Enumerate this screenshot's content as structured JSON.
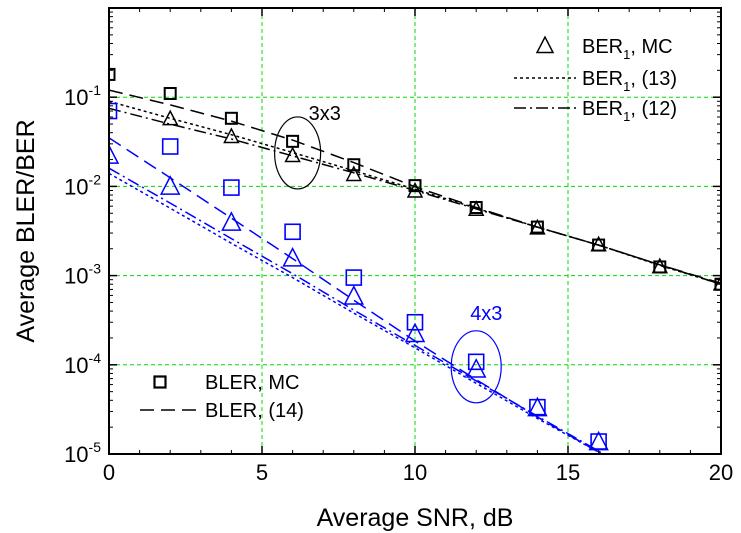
{
  "chart_data": {
    "type": "line",
    "xlabel": "Average SNR, dB",
    "ylabel": "Average BLER/BER",
    "xlim": [
      0,
      20
    ],
    "ylim": [
      1e-05,
      1
    ],
    "yscale": "log",
    "grid": true,
    "xticks": [
      {
        "value": 0,
        "label": "0"
      },
      {
        "value": 5,
        "label": "5"
      },
      {
        "value": 10,
        "label": "10"
      },
      {
        "value": 15,
        "label": "15"
      },
      {
        "value": 20,
        "label": "20"
      }
    ],
    "yticks": [
      {
        "value": 1e-05,
        "base": "10",
        "exp": "-5"
      },
      {
        "value": 0.0001,
        "base": "10",
        "exp": "-4"
      },
      {
        "value": 0.001,
        "base": "10",
        "exp": "-3"
      },
      {
        "value": 0.01,
        "base": "10",
        "exp": "-2"
      },
      {
        "value": 0.1,
        "base": "10",
        "exp": "-1"
      }
    ],
    "legend_top_right": [
      {
        "marker": "triangle",
        "text": "BER",
        "sub": "1",
        "rest": ", MC"
      },
      {
        "line": "dotted",
        "text": "BER",
        "sub": "1",
        "rest": ", (13)"
      },
      {
        "line": "dashdot",
        "text": "BER",
        "sub": "1",
        "rest": ", (12)"
      }
    ],
    "legend_bottom_left": [
      {
        "marker": "square",
        "text": "BLER, MC"
      },
      {
        "line": "dashed",
        "text": "BLER, (14)"
      }
    ],
    "annotations": [
      {
        "text": "3x3",
        "color": "#000000",
        "x": 6,
        "y": 0.027
      },
      {
        "text": "4x3",
        "color": "#0000ff",
        "x": 12,
        "y": 0.0001
      }
    ],
    "colors": {
      "config_3x3": "#000000",
      "config_4x3": "#0000ff",
      "grid": "#00dd00"
    },
    "series": [
      {
        "config": "3x3",
        "kind": "BLER",
        "style": "square",
        "x": [
          0,
          2,
          4,
          6,
          8,
          10,
          12,
          14,
          16,
          18,
          20
        ],
        "y": [
          0.18,
          0.11,
          0.058,
          0.032,
          0.0175,
          0.0102,
          0.0058,
          0.0035,
          0.0022,
          0.00125,
          0.0008
        ]
      },
      {
        "config": "3x3",
        "kind": "BLER",
        "style": "dashed",
        "x": [
          0,
          2,
          4,
          6,
          8,
          10,
          12,
          14,
          16,
          18,
          20
        ],
        "y": [
          0.12,
          0.082,
          0.054,
          0.033,
          0.0185,
          0.0099,
          0.0058,
          0.0035,
          0.0022,
          0.00132,
          0.00082
        ]
      },
      {
        "config": "3x3",
        "kind": "BER",
        "style": "triangle",
        "x": [
          2,
          4,
          6,
          8,
          10,
          12,
          14,
          16,
          18,
          20
        ],
        "y": [
          0.057,
          0.036,
          0.022,
          0.0135,
          0.0088,
          0.0055,
          0.0034,
          0.0022,
          0.00125,
          0.0008
        ]
      },
      {
        "config": "3x3",
        "kind": "BER",
        "style": "dotted",
        "x": [
          0,
          2,
          4,
          6,
          8,
          10,
          12,
          14,
          16,
          18,
          20
        ],
        "y": [
          0.09,
          0.058,
          0.038,
          0.024,
          0.015,
          0.0093,
          0.0057,
          0.0035,
          0.0022,
          0.0013,
          0.0008
        ]
      },
      {
        "config": "3x3",
        "kind": "BER",
        "style": "dashdot",
        "x": [
          0,
          2,
          4,
          6,
          8,
          10,
          12,
          14,
          16,
          18,
          20
        ],
        "y": [
          0.075,
          0.05,
          0.034,
          0.022,
          0.0142,
          0.009,
          0.0056,
          0.0035,
          0.0022,
          0.00132,
          0.0008
        ]
      },
      {
        "config": "4x3",
        "kind": "BLER",
        "style": "square",
        "x": [
          0,
          2,
          4,
          6,
          8,
          10,
          12,
          14,
          16
        ],
        "y": [
          0.07,
          0.028,
          0.0097,
          0.0031,
          0.00095,
          0.0003,
          0.000108,
          3.35e-05,
          1.38e-05
        ]
      },
      {
        "config": "4x3",
        "kind": "BLER",
        "style": "dashed",
        "x": [
          0,
          2,
          4,
          6,
          8,
          10,
          12,
          14,
          16,
          16.6
        ],
        "y": [
          0.035,
          0.0125,
          0.0044,
          0.00155,
          0.00053,
          0.000185,
          6.8e-05,
          2.6e-05,
          1.05e-05,
          7.5e-06
        ]
      },
      {
        "config": "4x3",
        "kind": "BER",
        "style": "triangle",
        "x": [
          0,
          2,
          4,
          6,
          8,
          10,
          12,
          14,
          16
        ],
        "y": [
          0.022,
          0.0099,
          0.0039,
          0.00155,
          0.00058,
          0.00022,
          8.8e-05,
          3.25e-05,
          1.35e-05
        ]
      },
      {
        "config": "4x3",
        "kind": "BER",
        "style": "dotted",
        "x": [
          0,
          2,
          4,
          6,
          8,
          10,
          12,
          14,
          16,
          16.5
        ],
        "y": [
          0.014,
          0.0057,
          0.0023,
          0.00095,
          0.00038,
          0.000155,
          6.2e-05,
          2.5e-05,
          1.05e-05,
          8e-06
        ]
      },
      {
        "config": "4x3",
        "kind": "BER",
        "style": "dashdot",
        "x": [
          0,
          2,
          4,
          6,
          8,
          10,
          12,
          14,
          16,
          16.5
        ],
        "y": [
          0.016,
          0.0065,
          0.0026,
          0.00105,
          0.00041,
          0.000165,
          6.6e-05,
          2.65e-05,
          1.08e-05,
          8e-06
        ]
      }
    ]
  }
}
